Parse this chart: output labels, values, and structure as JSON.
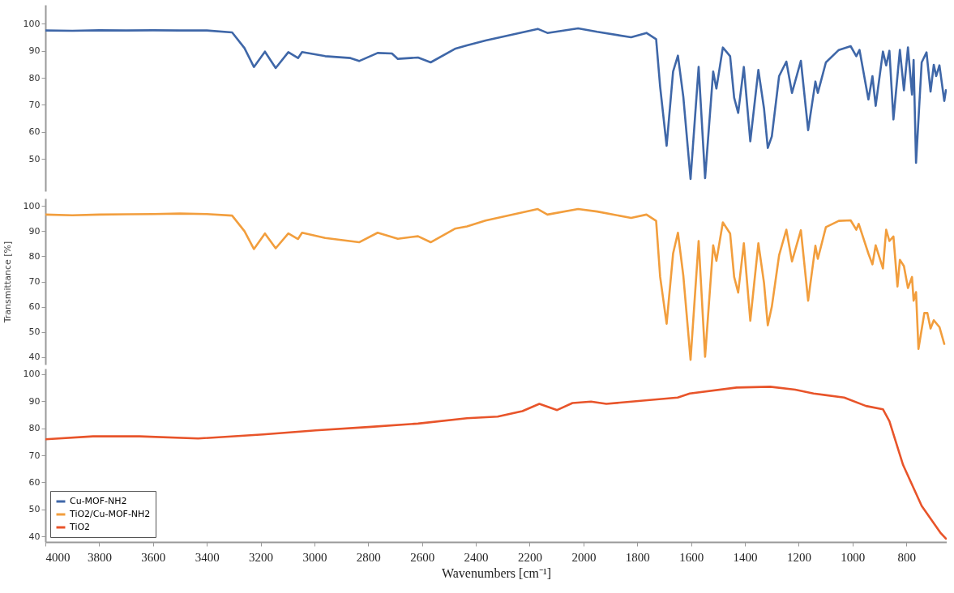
{
  "chart_data": [
    {
      "type": "line",
      "xlim": [
        4000,
        650
      ],
      "ylim": [
        38,
        107
      ],
      "yticks": [
        50,
        60,
        70,
        80,
        90,
        100
      ],
      "tick_labels": "y",
      "series": [
        {
          "name": "Cu-MOF-NH2",
          "color": "#3f67a8",
          "x": [
            4000,
            3900,
            3800,
            3700,
            3600,
            3500,
            3400,
            3306,
            3260,
            3225,
            3184,
            3144,
            3097,
            3061,
            3046,
            2960,
            2866,
            2834,
            2765,
            2712,
            2690,
            2615,
            2568,
            2478,
            2433,
            2364,
            2170,
            2134,
            2020,
            1949,
            1823,
            1766,
            1730,
            1715,
            1691,
            1667,
            1649,
            1629,
            1602,
            1572,
            1548,
            1518,
            1506,
            1482,
            1455,
            1440,
            1425,
            1404,
            1380,
            1350,
            1329,
            1315,
            1300,
            1273,
            1246,
            1225,
            1192,
            1165,
            1138,
            1129,
            1099,
            1051,
            1007,
            986,
            974,
            941,
            926,
            914,
            887,
            875,
            863,
            848,
            824,
            809,
            794,
            779,
            773,
            764,
            743,
            725,
            710,
            698,
            689,
            677,
            659,
            653
          ],
          "values": [
            97.5,
            97.4,
            97.6,
            97.5,
            97.6,
            97.5,
            97.5,
            96.8,
            91,
            84,
            89.7,
            83.6,
            89.5,
            87.3,
            89.5,
            88,
            87.3,
            86.2,
            89.2,
            89,
            87,
            87.5,
            85.7,
            90.7,
            92,
            93.8,
            98.1,
            96.6,
            98.3,
            97,
            95,
            96.6,
            94.3,
            76.6,
            54.8,
            82.3,
            88.2,
            73,
            42.5,
            84,
            42.8,
            82.3,
            76,
            91.2,
            88,
            72.6,
            67,
            84,
            56.5,
            82.9,
            68.6,
            54,
            58.3,
            80.6,
            86,
            74.4,
            86.3,
            60.6,
            78.6,
            74.4,
            85.7,
            90.3,
            91.7,
            88,
            90.3,
            72,
            80.6,
            69.6,
            89.7,
            84.6,
            90,
            64.6,
            90.3,
            75.4,
            91.2,
            73.8,
            86.6,
            48.5,
            85.7,
            89.4,
            74.9,
            84.8,
            80.6,
            84.6,
            71.4,
            75.4
          ]
        }
      ]
    },
    {
      "type": "line",
      "ylabel": "Transmittance [%]",
      "xlim": [
        4000,
        650
      ],
      "ylim": [
        37,
        103
      ],
      "yticks": [
        40,
        50,
        60,
        70,
        80,
        90,
        100
      ],
      "tick_labels": "y",
      "series": [
        {
          "name": "TiO2/Cu-MOF-NH2",
          "color": "#f29e3d",
          "x": [
            4000,
            3900,
            3800,
            3700,
            3600,
            3500,
            3400,
            3306,
            3260,
            3225,
            3184,
            3144,
            3097,
            3061,
            3046,
            2960,
            2834,
            2765,
            2690,
            2615,
            2568,
            2478,
            2433,
            2364,
            2170,
            2134,
            2020,
            1949,
            1823,
            1766,
            1730,
            1715,
            1691,
            1667,
            1649,
            1629,
            1602,
            1572,
            1548,
            1518,
            1506,
            1482,
            1455,
            1440,
            1425,
            1404,
            1380,
            1350,
            1329,
            1315,
            1300,
            1273,
            1246,
            1225,
            1192,
            1165,
            1138,
            1129,
            1099,
            1051,
            1007,
            986,
            977,
            941,
            926,
            914,
            887,
            875,
            863,
            848,
            833,
            824,
            809,
            794,
            779,
            773,
            764,
            755,
            733,
            722,
            710,
            698,
            677,
            659
          ],
          "values": [
            96.6,
            96.3,
            96.6,
            96.7,
            96.8,
            97,
            96.8,
            96.2,
            90,
            82.9,
            89.1,
            83.2,
            89.1,
            86.9,
            89.4,
            87.3,
            85.6,
            89.4,
            87,
            88,
            85.6,
            91,
            91.9,
            94.2,
            98.8,
            96.6,
            98.8,
            97.8,
            95.3,
            96.6,
            94.1,
            71.8,
            53.2,
            81.1,
            89.4,
            72.4,
            38.9,
            86.1,
            40.1,
            84.4,
            78.2,
            93.5,
            89.1,
            71.8,
            65.6,
            85.2,
            54.4,
            85.2,
            69.4,
            52.6,
            60,
            80.4,
            90.6,
            78,
            90.4,
            62.4,
            84.2,
            79,
            91.6,
            94.1,
            94.3,
            90.6,
            92.9,
            81.1,
            76.8,
            84.4,
            75.2,
            90.6,
            86.1,
            87.9,
            68,
            78.6,
            76.1,
            67.4,
            71.8,
            62.4,
            65.8,
            43.2,
            57.5,
            57.5,
            51.3,
            54.6,
            51.9,
            45.2
          ]
        }
      ]
    },
    {
      "type": "line",
      "xlabel": "Wavenumbers [cm⁻¹]",
      "xlim": [
        4000,
        650
      ],
      "ylim": [
        38,
        102
      ],
      "xticks": [
        4000,
        3800,
        3600,
        3400,
        3200,
        3000,
        2800,
        2600,
        2400,
        2200,
        2000,
        1800,
        1600,
        1400,
        1200,
        1000,
        800
      ],
      "yticks": [
        40,
        50,
        60,
        70,
        80,
        90,
        100
      ],
      "legend": "bottom left",
      "series": [
        {
          "name": "TiO2",
          "color": "#e8542a",
          "x": [
            4000,
            3823,
            3650,
            3432,
            3190,
            2995,
            2789,
            2615,
            2433,
            2319,
            2227,
            2164,
            2098,
            2041,
            1972,
            1915,
            1650,
            1605,
            1431,
            1306,
            1213,
            1145,
            1031,
            950,
            887,
            863,
            812,
            743,
            674,
            653
          ],
          "values": [
            75.9,
            77,
            77,
            76.2,
            77.7,
            79.2,
            80.5,
            81.7,
            83.7,
            84.3,
            86.3,
            89,
            86.7,
            89.3,
            89.8,
            89,
            91.3,
            92.8,
            95,
            95.3,
            94.2,
            92.8,
            91.3,
            88.2,
            87,
            82.6,
            66.4,
            51.3,
            41.5,
            39.2
          ]
        }
      ]
    }
  ]
}
